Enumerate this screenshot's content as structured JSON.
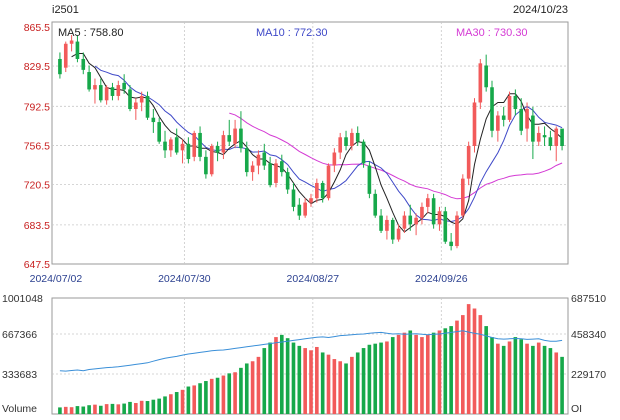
{
  "header": {
    "symbol": "i2501",
    "date": "2024/10/23"
  },
  "legend": {
    "ma5": "MA5 : 758.80",
    "ma10": "MA10 : 772.30",
    "ma30": "MA30 : 730.30"
  },
  "colors": {
    "up": "#f25a5a",
    "down": "#16a84a",
    "ma5": "#222222",
    "ma10": "#3f49c8",
    "ma30": "#d43ad4",
    "oi": "#3a8fd8",
    "price_label": "#c82020",
    "grid": "#c8c8c8"
  },
  "chart_data": [
    {
      "type": "candlestick",
      "ylim": [
        647.5,
        870
      ],
      "y_ticks": [
        "865.5",
        "829.5",
        "792.5",
        "756.5",
        "720.5",
        "683.5",
        "647.5"
      ],
      "x_ticks": [
        "2024/07/02",
        "2024/07/30",
        "2024/08/27",
        "2024/09/26"
      ],
      "ohlc": [
        [
          836,
          842,
          818,
          822
        ],
        [
          828,
          852,
          824,
          850
        ],
        [
          850,
          858,
          843,
          853
        ],
        [
          852,
          858,
          833,
          836
        ],
        [
          836,
          842,
          822,
          826
        ],
        [
          824,
          830,
          806,
          808
        ],
        [
          808,
          818,
          795,
          812
        ],
        [
          812,
          818,
          796,
          798
        ],
        [
          798,
          812,
          794,
          810
        ],
        [
          810,
          814,
          798,
          802
        ],
        [
          802,
          816,
          798,
          812
        ],
        [
          814,
          822,
          804,
          808
        ],
        [
          808,
          812,
          788,
          790
        ],
        [
          790,
          800,
          780,
          796
        ],
        [
          796,
          806,
          788,
          802
        ],
        [
          802,
          806,
          780,
          782
        ],
        [
          782,
          790,
          768,
          778
        ],
        [
          778,
          782,
          758,
          760
        ],
        [
          760,
          770,
          745,
          752
        ],
        [
          752,
          764,
          746,
          762
        ],
        [
          764,
          772,
          748,
          750
        ],
        [
          752,
          762,
          740,
          758
        ],
        [
          758,
          764,
          740,
          744
        ],
        [
          746,
          770,
          742,
          768
        ],
        [
          768,
          774,
          742,
          746
        ],
        [
          746,
          752,
          726,
          730
        ],
        [
          730,
          758,
          728,
          756
        ],
        [
          756,
          760,
          742,
          750
        ],
        [
          750,
          770,
          744,
          766
        ],
        [
          766,
          780,
          756,
          760
        ],
        [
          758,
          780,
          754,
          772
        ],
        [
          772,
          788,
          750,
          754
        ],
        [
          754,
          760,
          728,
          732
        ],
        [
          732,
          742,
          724,
          738
        ],
        [
          738,
          752,
          730,
          748
        ],
        [
          750,
          758,
          734,
          738
        ],
        [
          740,
          746,
          718,
          720
        ],
        [
          722,
          744,
          718,
          740
        ],
        [
          742,
          748,
          728,
          732
        ],
        [
          732,
          736,
          712,
          716
        ],
        [
          716,
          722,
          696,
          700
        ],
        [
          702,
          708,
          688,
          692
        ],
        [
          692,
          708,
          690,
          704
        ],
        [
          704,
          712,
          700,
          708
        ],
        [
          708,
          726,
          704,
          722
        ],
        [
          722,
          724,
          704,
          708
        ],
        [
          708,
          740,
          706,
          738
        ],
        [
          738,
          754,
          732,
          750
        ],
        [
          750,
          768,
          744,
          764
        ],
        [
          764,
          770,
          752,
          756
        ],
        [
          756,
          772,
          752,
          768
        ],
        [
          768,
          774,
          756,
          760
        ],
        [
          760,
          762,
          736,
          740
        ],
        [
          738,
          742,
          708,
          712
        ],
        [
          712,
          716,
          690,
          692
        ],
        [
          692,
          698,
          676,
          678
        ],
        [
          678,
          692,
          670,
          688
        ],
        [
          688,
          690,
          666,
          670
        ],
        [
          670,
          684,
          668,
          680
        ],
        [
          680,
          696,
          676,
          692
        ],
        [
          692,
          702,
          678,
          684
        ],
        [
          684,
          694,
          674,
          690
        ],
        [
          690,
          704,
          684,
          700
        ],
        [
          700,
          712,
          694,
          708
        ],
        [
          708,
          712,
          680,
          684
        ],
        [
          684,
          700,
          678,
          696
        ],
        [
          696,
          700,
          666,
          668
        ],
        [
          668,
          676,
          660,
          664
        ],
        [
          664,
          696,
          662,
          692
        ],
        [
          692,
          730,
          690,
          726
        ],
        [
          726,
          760,
          720,
          756
        ],
        [
          756,
          800,
          750,
          796
        ],
        [
          796,
          836,
          790,
          832
        ],
        [
          830,
          840,
          806,
          810
        ],
        [
          810,
          816,
          764,
          770
        ],
        [
          770,
          788,
          760,
          784
        ],
        [
          784,
          792,
          774,
          780
        ],
        [
          780,
          806,
          778,
          802
        ],
        [
          802,
          808,
          784,
          790
        ],
        [
          790,
          800,
          766,
          770
        ],
        [
          772,
          796,
          760,
          790
        ],
        [
          784,
          792,
          744,
          760
        ],
        [
          760,
          774,
          756,
          768
        ],
        [
          766,
          774,
          756,
          764
        ],
        [
          764,
          770,
          752,
          756
        ],
        [
          756,
          774,
          742,
          772
        ],
        [
          772,
          770,
          752,
          756
        ]
      ],
      "ma5": [
        830,
        833,
        838,
        841,
        841,
        832,
        828,
        819,
        810,
        808,
        808,
        807,
        801,
        800,
        801,
        800,
        793,
        783,
        775,
        769,
        766,
        762,
        756,
        756,
        754,
        754,
        751,
        750,
        748,
        754,
        758,
        761,
        755,
        748,
        744,
        744,
        740,
        738,
        736,
        730,
        722,
        714,
        708,
        703,
        706,
        707,
        713,
        723,
        734,
        748,
        756,
        760,
        759,
        752,
        737,
        720,
        708,
        695,
        683,
        677,
        681,
        685,
        689,
        695,
        693,
        693,
        691,
        686,
        684,
        689,
        706,
        739,
        762,
        781,
        792,
        796,
        796,
        804,
        804,
        797,
        784,
        776,
        776,
        777,
        772,
        768,
        763
      ]
    },
    {
      "type": "bar",
      "y_ticks_left": [
        "1001048",
        "667366",
        "333683",
        "Volume"
      ],
      "y_ticks_right": [
        "687510",
        "458340",
        "229170",
        "OI"
      ],
      "volume": [
        60000,
        65000,
        62000,
        72000,
        68000,
        80000,
        85000,
        75000,
        90000,
        92000,
        88000,
        95000,
        110000,
        100000,
        120000,
        118000,
        130000,
        140000,
        160000,
        180000,
        200000,
        220000,
        250000,
        260000,
        280000,
        300000,
        320000,
        330000,
        350000,
        370000,
        380000,
        420000,
        460000,
        480000,
        520000,
        600000,
        650000,
        700000,
        720000,
        690000,
        650000,
        620000,
        600000,
        580000,
        610000,
        560000,
        540000,
        500000,
        480000,
        460000,
        520000,
        560000,
        600000,
        630000,
        640000,
        650000,
        660000,
        700000,
        720000,
        740000,
        760000,
        720000,
        700000,
        720000,
        740000,
        760000,
        780000,
        800000,
        850000,
        900000,
        1000000,
        960000,
        900000,
        800000,
        700000,
        640000,
        620000,
        660000,
        700000,
        680000,
        640000,
        620000,
        650000,
        620000,
        600000,
        560000,
        520000
      ],
      "oi": [
        270000,
        268000,
        272000,
        275000,
        270000,
        278000,
        282000,
        286000,
        290000,
        292000,
        295000,
        300000,
        305000,
        310000,
        315000,
        320000,
        330000,
        340000,
        348000,
        355000,
        360000,
        368000,
        375000,
        380000,
        385000,
        390000,
        395000,
        398000,
        400000,
        405000,
        410000,
        415000,
        420000,
        425000,
        430000,
        435000,
        440000,
        445000,
        450000,
        455000,
        460000,
        465000,
        470000,
        475000,
        480000,
        482000,
        478000,
        484000,
        490000,
        492000,
        495000,
        498000,
        500000,
        505000,
        508000,
        510000,
        505000,
        500000,
        502000,
        498000,
        500000,
        502000,
        498000,
        495000,
        498000,
        500000,
        505000,
        510000,
        515000,
        520000,
        512000,
        505000,
        498000,
        488000,
        478000,
        470000,
        468000,
        470000,
        472000,
        470000,
        466000,
        468000,
        470000,
        460000,
        455000,
        455000,
        460000
      ]
    }
  ]
}
